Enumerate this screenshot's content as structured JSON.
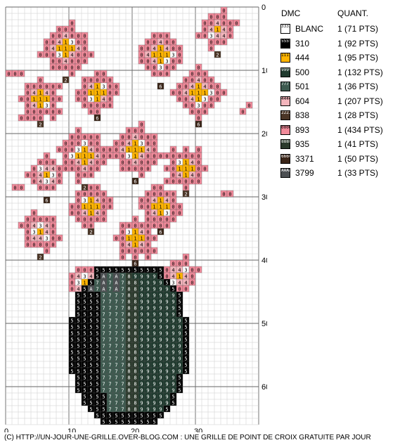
{
  "legend": {
    "header_dmc": "DMC",
    "header_quantity": "QUANT.",
    "items": [
      {
        "code": "BLANC",
        "quantity": "1 (71 PTS)",
        "symbol": "3",
        "color": "#ffffff",
        "symbol_color": "#000000"
      },
      {
        "code": "310",
        "quantity": "1 (92 PTS)",
        "symbol": "5",
        "color": "#000000",
        "symbol_color": "#ffffff"
      },
      {
        "code": "444",
        "quantity": "1 (95 PTS)",
        "symbol": "1",
        "color": "#ffb400",
        "symbol_color": "#000000"
      },
      {
        "code": "500",
        "quantity": "1 (132 PTS)",
        "symbol": "9",
        "color": "#1f3a2e",
        "symbol_color": "#ffffff"
      },
      {
        "code": "501",
        "quantity": "1 (36 PTS)",
        "symbol": "7",
        "color": "#3d5a4f",
        "symbol_color": "#ffffff"
      },
      {
        "code": "604",
        "quantity": "1 (207 PTS)",
        "symbol": "4",
        "color": "#f4b6bd",
        "symbol_color": "#000000"
      },
      {
        "code": "838",
        "quantity": "1 (28 PTS)",
        "symbol": "2",
        "color": "#4a3526",
        "symbol_color": "#ffffff"
      },
      {
        "code": "893",
        "quantity": "1 (434 PTS)",
        "symbol": "0",
        "color": "#f08a9a",
        "symbol_color": "#000000"
      },
      {
        "code": "935",
        "quantity": "1 (41 PTS)",
        "symbol": "8",
        "color": "#2b3a2c",
        "symbol_color": "#ffffff"
      },
      {
        "code": "3371",
        "quantity": "1 (50 PTS)",
        "symbol": "6",
        "color": "#3a2518",
        "symbol_color": "#ffffff"
      },
      {
        "code": "3799",
        "quantity": "1 (33 PTS)",
        "symbol": "A",
        "color": "#4c4f52",
        "symbol_color": "#ffffff"
      }
    ]
  },
  "chart_data": {
    "type": "table",
    "x_ticks": [
      "0",
      "10",
      "20",
      "30"
    ],
    "y_ticks": [
      "0",
      "10",
      "20",
      "30",
      "40",
      "50",
      "60"
    ],
    "x_range": [
      0,
      40
    ],
    "y_range": [
      0,
      66
    ],
    "grid": true,
    "vase_rows": [
      {
        "row": 42,
        "from": 14,
        "to": 24
      },
      {
        "row": 43,
        "from": 13,
        "to": 25
      },
      {
        "row": 44,
        "from": 12,
        "to": 26
      },
      {
        "row": 45,
        "from": 11,
        "to": 27
      },
      {
        "row": 46,
        "from": 11,
        "to": 27
      },
      {
        "row": 47,
        "from": 11,
        "to": 27
      },
      {
        "row": 48,
        "from": 11,
        "to": 27
      },
      {
        "row": 49,
        "from": 10,
        "to": 28
      },
      {
        "row": 50,
        "from": 10,
        "to": 28
      },
      {
        "row": 51,
        "from": 10,
        "to": 28
      },
      {
        "row": 52,
        "from": 10,
        "to": 28
      },
      {
        "row": 53,
        "from": 10,
        "to": 28
      },
      {
        "row": 54,
        "from": 10,
        "to": 28
      },
      {
        "row": 55,
        "from": 10,
        "to": 28
      },
      {
        "row": 56,
        "from": 10,
        "to": 28
      },
      {
        "row": 57,
        "from": 10,
        "to": 28
      },
      {
        "row": 58,
        "from": 11,
        "to": 27
      },
      {
        "row": 59,
        "from": 11,
        "to": 27
      },
      {
        "row": 60,
        "from": 11,
        "to": 27
      },
      {
        "row": 61,
        "from": 12,
        "to": 26
      },
      {
        "row": 62,
        "from": 12,
        "to": 26
      },
      {
        "row": 63,
        "from": 13,
        "to": 25
      },
      {
        "row": 64,
        "from": 14,
        "to": 24
      },
      {
        "row": 65,
        "from": 15,
        "to": 23
      }
    ],
    "flowers": [
      {
        "cx": 9,
        "cy": 6,
        "r": 3.5
      },
      {
        "cx": 24,
        "cy": 7,
        "r": 3.5
      },
      {
        "cx": 33,
        "cy": 3,
        "r": 2.5
      },
      {
        "cx": 30,
        "cy": 13,
        "r": 3.5
      },
      {
        "cx": 5,
        "cy": 14,
        "r": 3
      },
      {
        "cx": 14,
        "cy": 13,
        "r": 3
      },
      {
        "cx": 12,
        "cy": 23,
        "r": 3.5
      },
      {
        "cx": 20,
        "cy": 22,
        "r": 3.5
      },
      {
        "cx": 28,
        "cy": 25,
        "r": 3
      },
      {
        "cx": 6,
        "cy": 26,
        "r": 2.5
      },
      {
        "cx": 13,
        "cy": 31,
        "r": 3
      },
      {
        "cx": 24,
        "cy": 31,
        "r": 3
      },
      {
        "cx": 5,
        "cy": 35,
        "r": 2.5
      },
      {
        "cx": 20,
        "cy": 36,
        "r": 3
      },
      {
        "cx": 12,
        "cy": 43,
        "r": 2.5
      },
      {
        "cx": 27,
        "cy": 42,
        "r": 2.5
      }
    ]
  },
  "footer": "(C) HTTP://UN-JOUR-UNE-GRILLE.OVER-BLOG.COM : UNE GRILLE DE POINT DE CROIX GRATUITE PAR JOUR"
}
